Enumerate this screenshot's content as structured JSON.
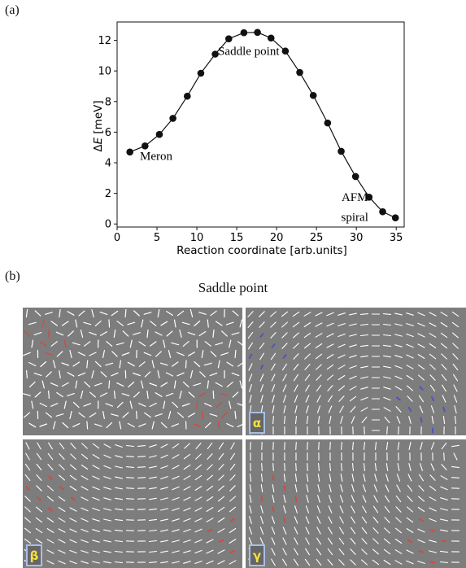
{
  "panel_labels": {
    "a": "(a)",
    "b": "(b)"
  },
  "chart_data": {
    "type": "line",
    "title": "",
    "xlabel": "Reaction coordinate [arb.units]",
    "ylabel_prefix": "Δ",
    "ylabel_var": "E",
    "ylabel_suffix": " [meV]",
    "xlim": [
      0,
      36
    ],
    "ylim": [
      -0.2,
      13.2
    ],
    "xticks": [
      0,
      5,
      10,
      15,
      20,
      25,
      30,
      35
    ],
    "yticks": [
      0,
      2,
      4,
      6,
      8,
      10,
      12
    ],
    "grid": false,
    "series": [
      {
        "x": [
          1.6,
          3.5,
          5.3,
          7.0,
          8.8,
          10.5,
          12.3,
          14.0,
          15.9,
          17.6,
          19.3,
          21.1,
          22.9,
          24.6,
          26.4,
          28.1,
          29.9,
          31.6,
          33.3,
          34.9
        ],
        "y": [
          4.7,
          5.1,
          5.85,
          6.9,
          8.35,
          9.85,
          11.1,
          12.1,
          12.5,
          12.52,
          12.15,
          11.3,
          9.9,
          8.4,
          6.6,
          4.75,
          3.1,
          1.75,
          0.8,
          0.4
        ]
      }
    ],
    "annotations": [
      {
        "text": "Saddle point",
        "x": 16.5,
        "y": 11.05
      },
      {
        "text": "Meron",
        "x": 4.9,
        "y": 4.2
      },
      {
        "text": "AFM",
        "x": 29.8,
        "y": 1.5
      },
      {
        "text": "spiral",
        "x": 29.8,
        "y": 0.2
      }
    ]
  },
  "figure_b": {
    "title": "Saddle point",
    "panels": [
      {
        "id": "tri",
        "badge": ""
      },
      {
        "id": "alpha",
        "badge": "α"
      },
      {
        "id": "beta",
        "badge": "β"
      },
      {
        "id": "gamma",
        "badge": "γ"
      }
    ]
  },
  "colors": {
    "panel_bg": "#7d7d7d",
    "spin": "#ffffff",
    "red_spin": "#d9463b",
    "blue_spin": "#4a52c9",
    "badge_text": "#f5e23a",
    "badge_border": "#a9bde6"
  }
}
